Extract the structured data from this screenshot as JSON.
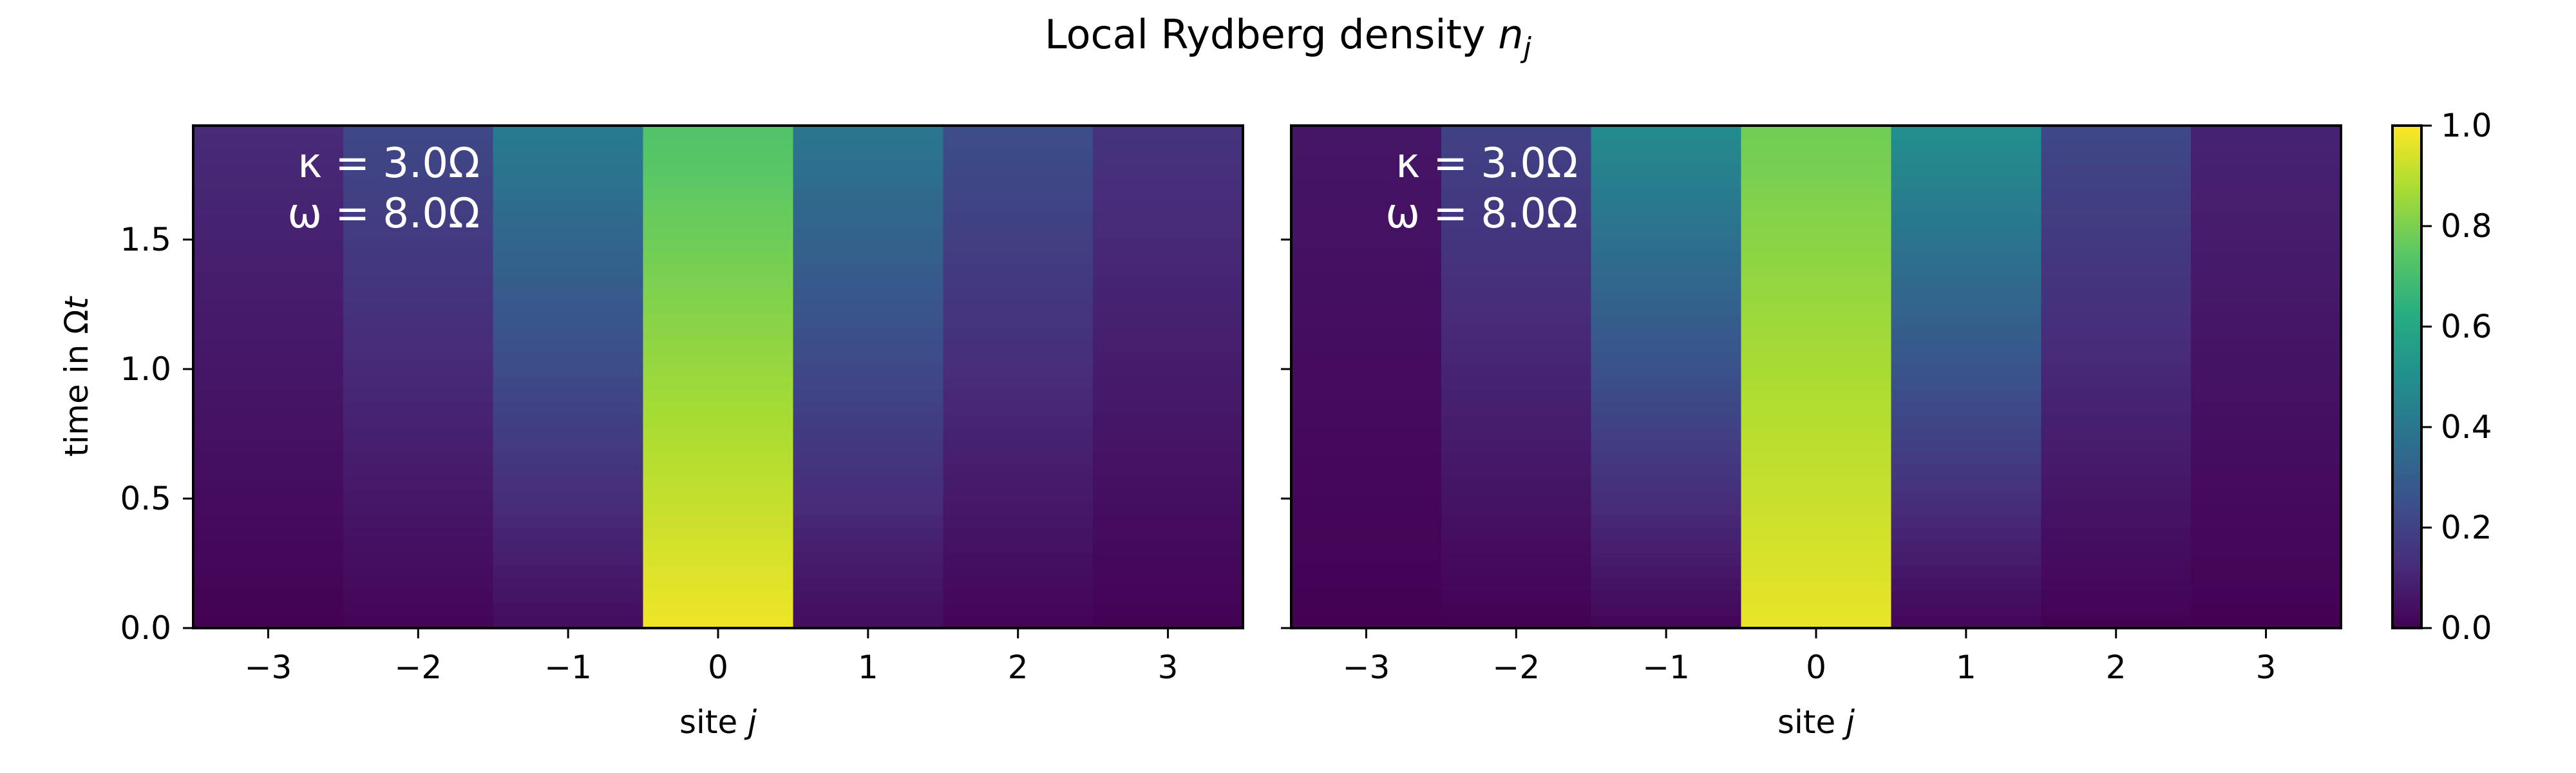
{
  "title": {
    "main": "Local Rydberg density ",
    "var": "n",
    "sub": "j"
  },
  "colorbar": {
    "colormap": "viridis",
    "range": [
      0.0,
      1.0
    ],
    "ticks": [
      0.0,
      0.2,
      0.4,
      0.6,
      0.8,
      1.0
    ],
    "tick_labels": [
      "0.0",
      "0.2",
      "0.4",
      "0.6",
      "0.8",
      "1.0"
    ]
  },
  "chart_data": [
    {
      "type": "heatmap",
      "panel": "left",
      "xlabel": {
        "text": "site ",
        "var": "j"
      },
      "ylabel": {
        "text": "time in Ω",
        "var": "t"
      },
      "x": [
        -3,
        -2,
        -1,
        0,
        1,
        2,
        3
      ],
      "xlim": [
        -3.5,
        3.5
      ],
      "ylim": [
        0.0,
        1.94
      ],
      "x_ticks": [
        -3,
        -2,
        -1,
        0,
        1,
        2,
        3
      ],
      "x_tick_labels": [
        "−3",
        "−2",
        "−1",
        "0",
        "1",
        "2",
        "3"
      ],
      "y_ticks": [
        0.0,
        0.5,
        1.0,
        1.5
      ],
      "y_tick_labels": [
        "0.0",
        "0.5",
        "1.0",
        "1.5"
      ],
      "annotations": [
        "κ = 3.0Ω",
        "ω = 8.0Ω"
      ],
      "time_profile": {
        "t_max": 1.94,
        "steps": 40
      },
      "site_density_at_t0": [
        0.0,
        0.01,
        0.03,
        0.98,
        0.03,
        0.01,
        0.0
      ],
      "site_density_at_tmax": [
        0.12,
        0.22,
        0.42,
        0.72,
        0.4,
        0.24,
        0.15
      ]
    },
    {
      "type": "heatmap",
      "panel": "right",
      "xlabel": {
        "text": "site ",
        "var": "j"
      },
      "ylabel": null,
      "x": [
        -3,
        -2,
        -1,
        0,
        1,
        2,
        3
      ],
      "xlim": [
        -3.5,
        3.5
      ],
      "ylim": [
        0.0,
        1.94
      ],
      "x_ticks": [
        -3,
        -2,
        -1,
        0,
        1,
        2,
        3
      ],
      "x_tick_labels": [
        "−3",
        "−2",
        "−1",
        "0",
        "1",
        "2",
        "3"
      ],
      "y_ticks": [
        0.0,
        0.5,
        1.0,
        1.5
      ],
      "y_tick_labels": [],
      "annotations": [
        "κ = 3.0Ω",
        "ω = 8.0Ω"
      ],
      "time_profile": {
        "t_max": 1.94,
        "steps": 40
      },
      "site_density_at_t0": [
        0.0,
        0.0,
        0.01,
        0.97,
        0.01,
        0.0,
        0.0
      ],
      "site_density_at_tmax": [
        0.06,
        0.2,
        0.48,
        0.78,
        0.5,
        0.22,
        0.1
      ]
    }
  ]
}
